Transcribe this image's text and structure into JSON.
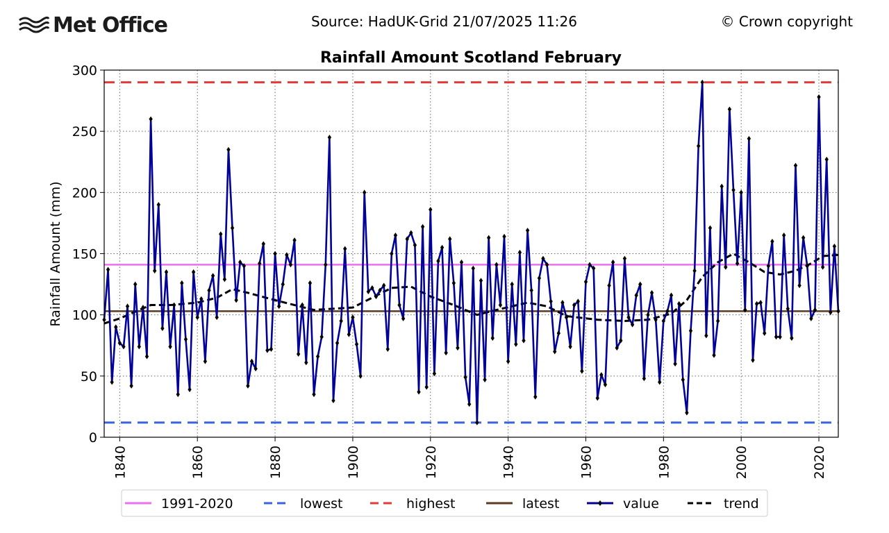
{
  "header": {
    "logo_text": "Met Office",
    "source": "Source: HadUK-Grid 21/07/2025 11:26",
    "copyright": "© Crown copyright"
  },
  "colors": {
    "baseline": "#ee6fee",
    "lowest": "#3a62e0",
    "highest": "#e03a3a",
    "latest": "#5b3a1e",
    "value": "#000099",
    "trend": "#000000"
  },
  "chart_data": {
    "type": "line",
    "title": "Rainfall Amount Scotland February",
    "xlabel": "",
    "ylabel": "Rainfall Amount (mm)",
    "xlim": [
      1836,
      2025
    ],
    "ylim": [
      0,
      300
    ],
    "x_ticks": [
      1840,
      1860,
      1880,
      1900,
      1920,
      1940,
      1960,
      1980,
      2000,
      2020
    ],
    "y_ticks": [
      0,
      50,
      100,
      150,
      200,
      250,
      300
    ],
    "grid": true,
    "legend_position": "bottom",
    "reference_lines": [
      {
        "name": "1991-2020",
        "value": 141
      },
      {
        "name": "lowest",
        "value": 12
      },
      {
        "name": "highest",
        "value": 290
      },
      {
        "name": "latest",
        "value": 103
      }
    ],
    "series": [
      {
        "name": "value",
        "x_start": 1836,
        "values": [
          96,
          137,
          45,
          90,
          77,
          74,
          107,
          42,
          125,
          74,
          106,
          66,
          260,
          136,
          190,
          89,
          135,
          74,
          108,
          35,
          126,
          80,
          39,
          135,
          98,
          113,
          62,
          120,
          132,
          98,
          166,
          129,
          235,
          171,
          112,
          143,
          140,
          42,
          62,
          56,
          142,
          158,
          71,
          72,
          150,
          107,
          125,
          149,
          141,
          161,
          68,
          108,
          61,
          126,
          35,
          66,
          82,
          141,
          245,
          30,
          77,
          95,
          154,
          84,
          98,
          76,
          50,
          200,
          119,
          122,
          115,
          120,
          124,
          72,
          150,
          165,
          108,
          97,
          162,
          167,
          157,
          37,
          172,
          41,
          186,
          52,
          144,
          155,
          69,
          162,
          126,
          73,
          143,
          49,
          27,
          138,
          12,
          128,
          47,
          163,
          81,
          141,
          108,
          164,
          62,
          125,
          76,
          151,
          79,
          169,
          120,
          33,
          130,
          146,
          141,
          111,
          70,
          85,
          110,
          98,
          74,
          108,
          111,
          54,
          127,
          141,
          138,
          32,
          51,
          43,
          124,
          143,
          73,
          79,
          146,
          98,
          92,
          116,
          125,
          48,
          100,
          118,
          96,
          45,
          95,
          103,
          116,
          60,
          109,
          47,
          20,
          87,
          136,
          238,
          290,
          83,
          171,
          67,
          95,
          205,
          139,
          268,
          202,
          142,
          200,
          104,
          244,
          63,
          109,
          110,
          85,
          140,
          160,
          82,
          82,
          165,
          105,
          81,
          222,
          124,
          163,
          140,
          97,
          104,
          278,
          139,
          227,
          102,
          156,
          103
        ]
      },
      {
        "name": "trend",
        "points": [
          [
            1836,
            93
          ],
          [
            1840,
            97
          ],
          [
            1845,
            104
          ],
          [
            1848,
            108
          ],
          [
            1853,
            108
          ],
          [
            1860,
            110
          ],
          [
            1865,
            114
          ],
          [
            1869,
            121
          ],
          [
            1873,
            118
          ],
          [
            1880,
            112
          ],
          [
            1890,
            104
          ],
          [
            1900,
            106
          ],
          [
            1905,
            114
          ],
          [
            1910,
            122
          ],
          [
            1915,
            123
          ],
          [
            1920,
            115
          ],
          [
            1926,
            108
          ],
          [
            1932,
            100
          ],
          [
            1937,
            104
          ],
          [
            1945,
            110
          ],
          [
            1950,
            107
          ],
          [
            1955,
            99
          ],
          [
            1963,
            96
          ],
          [
            1970,
            95
          ],
          [
            1976,
            96
          ],
          [
            1982,
            101
          ],
          [
            1986,
            112
          ],
          [
            1990,
            131
          ],
          [
            1994,
            143
          ],
          [
            1998,
            150
          ],
          [
            2002,
            143
          ],
          [
            2006,
            135
          ],
          [
            2010,
            133
          ],
          [
            2014,
            136
          ],
          [
            2018,
            142
          ],
          [
            2021,
            148
          ],
          [
            2025,
            149
          ]
        ]
      }
    ]
  }
}
